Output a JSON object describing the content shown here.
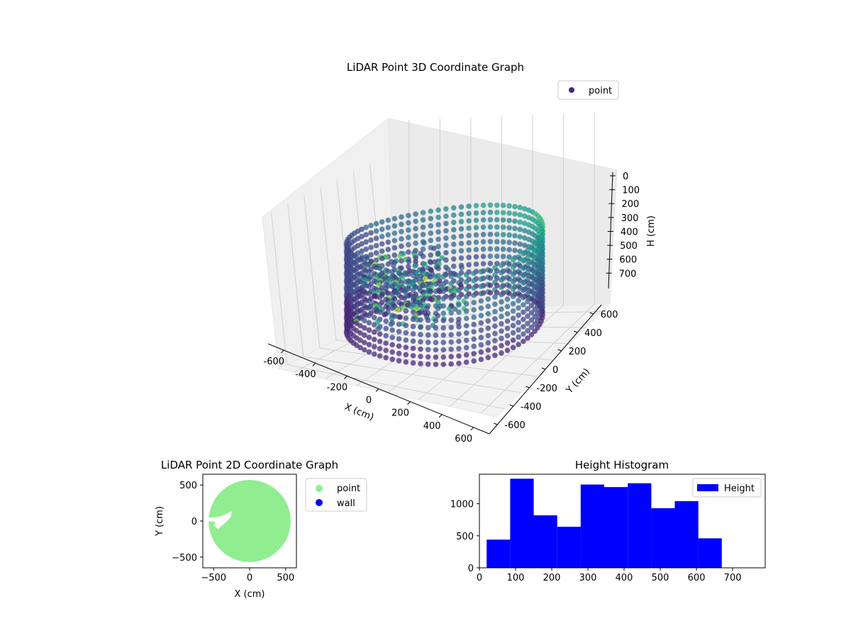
{
  "chart_data": [
    {
      "type": "scatter",
      "id": "scatter3d",
      "title": "LiDAR Point 3D Coordinate Graph",
      "xlabel": "X (cm)",
      "ylabel": "Y (cm)",
      "zlabel": "H (cm)",
      "xlim": [
        -700,
        700
      ],
      "ylim": [
        -700,
        700
      ],
      "zlim": [
        0,
        780
      ],
      "z_inverted": true,
      "xticks": [
        -600,
        -400,
        -200,
        0,
        200,
        400,
        600
      ],
      "yticks": [
        -600,
        -400,
        -200,
        0,
        200,
        400,
        600
      ],
      "zticks": [
        0,
        100,
        200,
        300,
        400,
        500,
        600,
        700
      ],
      "legend": {
        "position": "top-right",
        "entries": [
          {
            "label": "point",
            "color": "#482878"
          }
        ]
      },
      "series": [
        {
          "name": "point",
          "shape": "cylindrical-wall",
          "radius_cm": 560,
          "h_range": [
            50,
            650
          ],
          "colormap": "viridis",
          "obstacle_center": [
            -180,
            -120
          ]
        }
      ],
      "grid": true
    },
    {
      "type": "scatter",
      "id": "scatter2d",
      "title": "LiDAR Point 2D Coordinate Graph",
      "xlabel": "X (cm)",
      "ylabel": "Y (cm)",
      "xlim": [
        -650,
        650
      ],
      "ylim": [
        -650,
        650
      ],
      "xticks": [
        -500,
        0,
        500
      ],
      "yticks": [
        -500,
        0,
        500
      ],
      "legend": {
        "position": "outside-right",
        "entries": [
          {
            "label": "point",
            "color": "#90ee90"
          },
          {
            "label": "wall",
            "color": "#0000ff"
          }
        ]
      },
      "series": [
        {
          "name": "point",
          "shape": "disc",
          "center": [
            0,
            0
          ],
          "radius": 570,
          "color": "#90ee90"
        }
      ],
      "grid": false
    },
    {
      "type": "bar",
      "id": "histogram",
      "title": "Height Histogram",
      "bins": [
        [
          20,
          85
        ],
        [
          85,
          150
        ],
        [
          150,
          215
        ],
        [
          215,
          280
        ],
        [
          280,
          345
        ],
        [
          345,
          410
        ],
        [
          410,
          475
        ],
        [
          475,
          540
        ],
        [
          540,
          605
        ],
        [
          605,
          670
        ]
      ],
      "values": [
        440,
        1390,
        820,
        640,
        1300,
        1260,
        1320,
        930,
        1040,
        460
      ],
      "xlim": [
        0,
        790
      ],
      "ylim": [
        0,
        1460
      ],
      "xticks": [
        0,
        100,
        200,
        300,
        400,
        500,
        600,
        700
      ],
      "yticks": [
        0,
        500,
        1000
      ],
      "legend": {
        "position": "top-right",
        "entries": [
          {
            "label": "Height",
            "color": "#0000ff"
          }
        ]
      },
      "color": "#0000ff",
      "grid": false
    }
  ]
}
